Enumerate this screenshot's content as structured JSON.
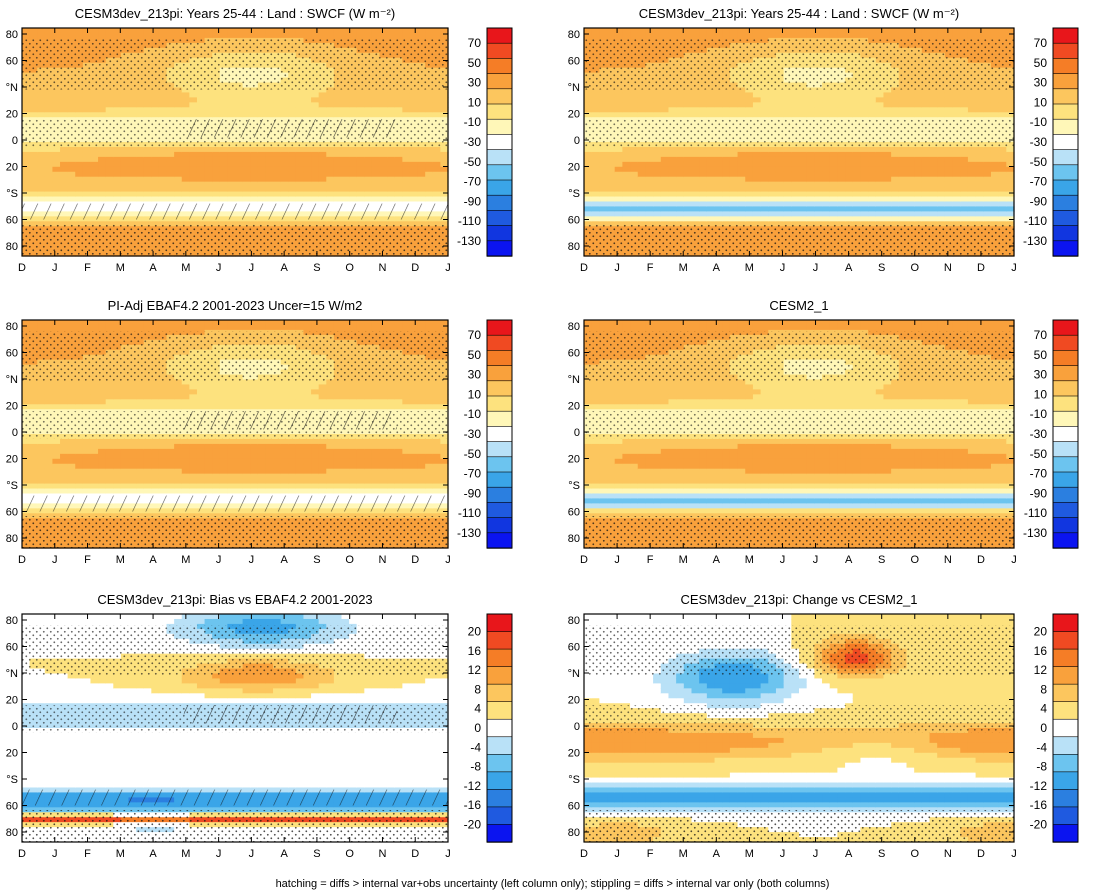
{
  "figure": {
    "caption": "hatching = diffs > internal var+obs uncertainty (left column only); stippling = diffs > internal var only (both columns)"
  },
  "chart_data": [
    {
      "type": "heatmap",
      "id": "p1",
      "title": "CESM3dev_213pi: Years 25-44 : Land : SWCF (W m⁻²)",
      "field": "mean",
      "hatching": true,
      "x_ticks": [
        "D",
        "J",
        "F",
        "M",
        "A",
        "M",
        "J",
        "J",
        "A",
        "S",
        "O",
        "N",
        "D",
        "J"
      ],
      "y_ticks": [
        "80",
        "60",
        "°N",
        "20",
        "0",
        "20",
        "°S",
        "60",
        "80"
      ],
      "colorbar": {
        "levels": [
          "70",
          "50",
          "30",
          "10",
          "-10",
          "-30",
          "-50",
          "-70",
          "-90",
          "-110",
          "-130"
        ],
        "colors": [
          "#e8161b",
          "#f04a22",
          "#f57d26",
          "#f9a13c",
          "#fcc65e",
          "#fde27e",
          "#fff7b8",
          "#ffffff",
          "#b9e1f7",
          "#6cc4ef",
          "#3aa5e8",
          "#2b7fe0",
          "#1f5ae0",
          "#1136e0",
          "#0b14f0"
        ]
      }
    },
    {
      "type": "heatmap",
      "id": "p2",
      "title": "CESM3dev_213pi: Years 25-44 : Land : SWCF (W m⁻²)",
      "field": "mean",
      "hatching": false,
      "x_ticks": [
        "D",
        "J",
        "F",
        "M",
        "A",
        "M",
        "J",
        "J",
        "A",
        "S",
        "O",
        "N",
        "D",
        "J"
      ],
      "y_ticks": [
        "80",
        "60",
        "°N",
        "20",
        "0",
        "20",
        "°S",
        "60",
        "80"
      ],
      "colorbar": {
        "levels": [
          "70",
          "50",
          "30",
          "10",
          "-10",
          "-30",
          "-50",
          "-70",
          "-90",
          "-110",
          "-130"
        ],
        "colors": [
          "#e8161b",
          "#f04a22",
          "#f57d26",
          "#f9a13c",
          "#fcc65e",
          "#fde27e",
          "#fff7b8",
          "#ffffff",
          "#b9e1f7",
          "#6cc4ef",
          "#3aa5e8",
          "#2b7fe0",
          "#1f5ae0",
          "#1136e0",
          "#0b14f0"
        ]
      }
    },
    {
      "type": "heatmap",
      "id": "p3",
      "title": "PI-Adj EBAF4.2 2001-2023 Uncer=15 W/m2",
      "field": "mean",
      "hatching": true,
      "x_ticks": [
        "D",
        "J",
        "F",
        "M",
        "A",
        "M",
        "J",
        "J",
        "A",
        "S",
        "O",
        "N",
        "D",
        "J"
      ],
      "y_ticks": [
        "80",
        "60",
        "°N",
        "20",
        "0",
        "20",
        "°S",
        "60",
        "80"
      ],
      "colorbar": {
        "levels": [
          "70",
          "50",
          "30",
          "10",
          "-10",
          "-30",
          "-50",
          "-70",
          "-90",
          "-110",
          "-130"
        ],
        "colors": [
          "#e8161b",
          "#f04a22",
          "#f57d26",
          "#f9a13c",
          "#fcc65e",
          "#fde27e",
          "#fff7b8",
          "#ffffff",
          "#b9e1f7",
          "#6cc4ef",
          "#3aa5e8",
          "#2b7fe0",
          "#1f5ae0",
          "#1136e0",
          "#0b14f0"
        ]
      }
    },
    {
      "type": "heatmap",
      "id": "p4",
      "title": "CESM2_1",
      "field": "mean",
      "hatching": false,
      "x_ticks": [
        "D",
        "J",
        "F",
        "M",
        "A",
        "M",
        "J",
        "J",
        "A",
        "S",
        "O",
        "N",
        "D",
        "J"
      ],
      "y_ticks": [
        "80",
        "60",
        "°N",
        "20",
        "0",
        "20",
        "°S",
        "60",
        "80"
      ],
      "colorbar": {
        "levels": [
          "70",
          "50",
          "30",
          "10",
          "-10",
          "-30",
          "-50",
          "-70",
          "-90",
          "-110",
          "-130"
        ],
        "colors": [
          "#e8161b",
          "#f04a22",
          "#f57d26",
          "#f9a13c",
          "#fcc65e",
          "#fde27e",
          "#fff7b8",
          "#ffffff",
          "#b9e1f7",
          "#6cc4ef",
          "#3aa5e8",
          "#2b7fe0",
          "#1f5ae0",
          "#1136e0",
          "#0b14f0"
        ]
      }
    },
    {
      "type": "heatmap",
      "id": "p5",
      "title": "CESM3dev_213pi: Bias vs EBAF4.2 2001-2023",
      "field": "diff",
      "hatching": true,
      "x_ticks": [
        "D",
        "J",
        "F",
        "M",
        "A",
        "M",
        "J",
        "J",
        "A",
        "S",
        "O",
        "N",
        "D",
        "J"
      ],
      "y_ticks": [
        "80",
        "60",
        "°N",
        "20",
        "0",
        "20",
        "°S",
        "60",
        "80"
      ],
      "colorbar": {
        "levels": [
          "20",
          "16",
          "12",
          "8",
          "4",
          "0",
          "-4",
          "-8",
          "-12",
          "-16",
          "-20"
        ],
        "colors": [
          "#e8161b",
          "#f04a22",
          "#f57d26",
          "#f9a13c",
          "#fcc65e",
          "#fde27e",
          "#ffffff",
          "#b9e1f7",
          "#6cc4ef",
          "#3aa5e8",
          "#2b7fe0",
          "#1f5ae0",
          "#0b14f0"
        ]
      }
    },
    {
      "type": "heatmap",
      "id": "p6",
      "title": "CESM3dev_213pi: Change vs CESM2_1",
      "field": "change",
      "hatching": false,
      "x_ticks": [
        "D",
        "J",
        "F",
        "M",
        "A",
        "M",
        "J",
        "J",
        "A",
        "S",
        "O",
        "N",
        "D",
        "J"
      ],
      "y_ticks": [
        "80",
        "60",
        "°N",
        "20",
        "0",
        "20",
        "°S",
        "60",
        "80"
      ],
      "colorbar": {
        "levels": [
          "20",
          "16",
          "12",
          "8",
          "4",
          "0",
          "-4",
          "-8",
          "-12",
          "-16",
          "-20"
        ],
        "colors": [
          "#e8161b",
          "#f04a22",
          "#f57d26",
          "#f9a13c",
          "#fcc65e",
          "#fde27e",
          "#ffffff",
          "#b9e1f7",
          "#6cc4ef",
          "#3aa5e8",
          "#2b7fe0",
          "#1f5ae0",
          "#0b14f0"
        ]
      }
    }
  ]
}
